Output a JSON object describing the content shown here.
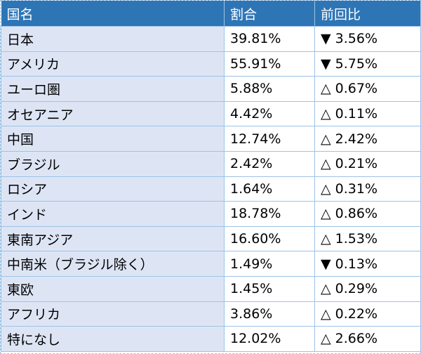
{
  "table": {
    "header": [
      "国名",
      "割合",
      "前回比"
    ],
    "rows": [
      [
        "日本",
        "39.81%",
        "▼ 3.56%"
      ],
      [
        "アメリカ",
        "55.91%",
        "▼ 5.75%"
      ],
      [
        "ユーロ圏",
        "5.88%",
        "△ 0.67%"
      ],
      [
        "オセアニア",
        "4.42%",
        "△ 0.11%"
      ],
      [
        "中国",
        "12.74%",
        "△ 2.42%"
      ],
      [
        "ブラジル",
        "2.42%",
        "△ 0.21%"
      ],
      [
        "ロシア",
        "1.64%",
        "△ 0.31%"
      ],
      [
        "インド",
        "18.78%",
        "△ 0.86%"
      ],
      [
        "東南アジア",
        "16.60%",
        "△ 1.53%"
      ],
      [
        "中南米（ブラジル除く）",
        "1.49%",
        "▼ 0.13%"
      ],
      [
        "東欧",
        "1.45%",
        "△ 0.29%"
      ],
      [
        "アフリカ",
        "3.86%",
        "△ 0.22%"
      ],
      [
        "特になし",
        "12.02%",
        "△ 2.66%"
      ]
    ]
  }
}
